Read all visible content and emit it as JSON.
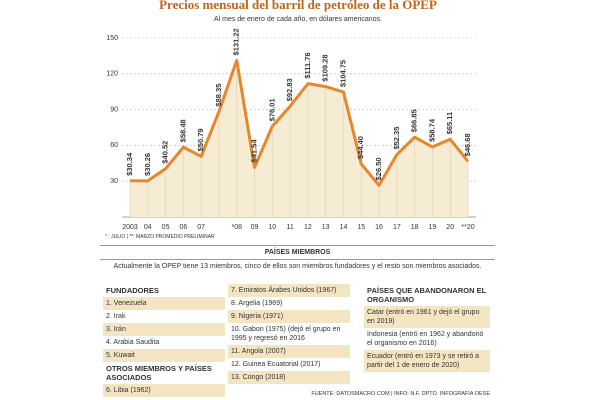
{
  "chart_data": {
    "type": "line",
    "title": "Precios mensual del barril de petróleo de la OPEP",
    "subtitle": "Al mes de enero de cada año, en dólares americanos.",
    "categories": [
      "2003",
      "04",
      "05",
      "06",
      "07",
      null,
      "*08",
      "09",
      "10",
      "11",
      "12",
      "13",
      "14",
      "15",
      "16",
      "17",
      "18",
      "19",
      "20",
      "**20"
    ],
    "values": [
      30.34,
      30.26,
      40.52,
      58.48,
      50.79,
      88.35,
      131.22,
      41.54,
      76.01,
      92.83,
      111.76,
      109.28,
      104.75,
      44.4,
      26.5,
      52.35,
      66.85,
      58.74,
      65.11,
      46.68
    ],
    "value_labels": [
      "$30.34",
      "$30.26",
      "$40.52",
      "$58.48",
      "$50.79",
      "$88.35",
      "$131.22",
      "$41.54",
      "$76.01",
      "$92.83",
      "$111.76",
      "$109.28",
      "$104.75",
      "$44.40",
      "$26.50",
      "$52.35",
      "$66.85",
      "$58.74",
      "$65.11",
      "$46.68"
    ],
    "color": "#e8862c",
    "ylim": [
      0,
      150
    ],
    "yticks": [
      30,
      60,
      90,
      120,
      150
    ],
    "grid": true,
    "footnote": "* : JULIO | **: MARZO PROMEDIO PRELIMINAR"
  },
  "members": {
    "title": "PAÍSES MIEMBROS",
    "description": "Actualmente la OPEP tiene 13 miembros, cinco de ellos son miembros fundadores y el resto son miembros asociados.",
    "founders_title": "FUNDADORES",
    "founders": [
      "1. Venezuela",
      "2. Irak",
      "3. Irán",
      "4. Arabia Saudita",
      "5. Kuwait"
    ],
    "others_title": "OTROS MIEMBROS Y PAÍSES ASOCIADOS",
    "others": [
      "6. Libia  (1962)"
    ],
    "others_more": [
      "7. Emiratos Árabes Unidos (1967)",
      "8. Argelia (1969)",
      "9. Nigeria (1971)",
      "10. Gabon (1975)  (dejó el grupo en 1995 y regresó en 2016",
      "11. Angola (2007)",
      "12. Guinea Ecuatorial (2017)",
      "13. Congo (2018)"
    ],
    "left_title": "PAÍSES QUE ABANDONARON EL ORGANISMO",
    "left": [
      "Catar (entró en 1961 y dejó el grupo en 2019)",
      "Indonesia (entró en 1962 y abandonó el organismo en 2016)",
      "Ecuador (entró en 1973 y se retiró a partir del 1 de enero de 2020)"
    ]
  },
  "footer": "FUENTE: DATOSMACRO.COM | INFO: N.F. DPTO. INFOGRAFÍA OESE"
}
